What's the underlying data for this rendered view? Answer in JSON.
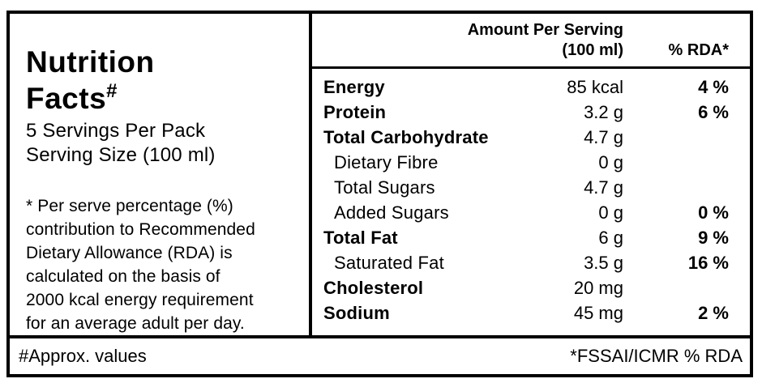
{
  "colors": {
    "border": "#000000",
    "text": "#000000",
    "background": "#ffffff"
  },
  "panel": {
    "title_line1": "Nutrition",
    "title_line2": "Facts",
    "title_superscript": "#",
    "servings_per_pack": "5 Servings Per Pack",
    "serving_size": "Serving Size (100 ml)",
    "footnote": "* Per serve percentage (%)\ncontribution to Recommended\nDietary Allowance (RDA) is\ncalculated on the basis of\n2000 kcal energy requirement\nfor an average adult per day."
  },
  "table": {
    "header": {
      "amount_line1": "Amount Per Serving",
      "amount_line2": "(100 ml)",
      "rda": "% RDA*"
    },
    "rows": [
      {
        "name": "Energy",
        "amount": "85 kcal",
        "rda": "4 %"
      },
      {
        "name": "Protein",
        "amount": "3.2 g",
        "rda": "6 %"
      },
      {
        "name": "Total Carbohydrate",
        "amount": "4.7 g",
        "rda": ""
      },
      {
        "name": "Dietary Fibre",
        "amount": "0 g",
        "rda": ""
      },
      {
        "name": "Total Sugars",
        "amount": "4.7 g",
        "rda": ""
      },
      {
        "name": "Added Sugars",
        "amount": "0 g",
        "rda": "0 %"
      },
      {
        "name": "Total Fat",
        "amount": "6 g",
        "rda": "9 %"
      },
      {
        "name": "Saturated Fat",
        "amount": "3.5 g",
        "rda": "16 %"
      },
      {
        "name": "Cholesterol",
        "amount": "20 mg",
        "rda": ""
      },
      {
        "name": "Sodium",
        "amount": "45 mg",
        "rda": "2 %"
      }
    ]
  },
  "footer": {
    "left": "#Approx. values",
    "right": "*FSSAI/ICMR % RDA"
  }
}
